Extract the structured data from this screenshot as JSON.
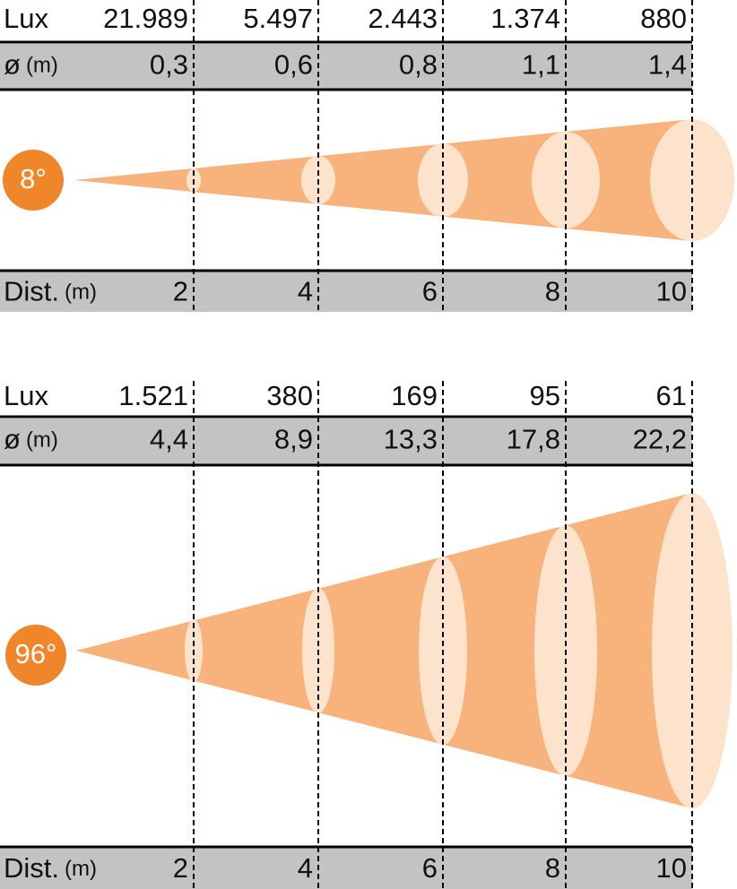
{
  "panels": [
    {
      "angle": "8°",
      "lux_label": "Lux",
      "lux": [
        "21.989",
        "5.497",
        "2.443",
        "1.374",
        "880"
      ],
      "diameter_label": "ø",
      "diameter_unit": "(m)",
      "diameters": [
        "0,3",
        "0,6",
        "0,8",
        "1,1",
        "1,4"
      ],
      "distance_label": "Dist.",
      "distance_unit": "(m)",
      "distances": [
        "2",
        "4",
        "6",
        "8",
        "10"
      ]
    },
    {
      "angle": "96°",
      "lux_label": "Lux",
      "lux": [
        "1.521",
        "380",
        "169",
        "95",
        "61"
      ],
      "diameter_label": "ø",
      "diameter_unit": "(m)",
      "diameters": [
        "4,4",
        "8,9",
        "13,3",
        "17,8",
        "22,2"
      ],
      "distance_label": "Dist.",
      "distance_unit": "(m)",
      "distances": [
        "2",
        "4",
        "6",
        "8",
        "10"
      ]
    }
  ]
}
